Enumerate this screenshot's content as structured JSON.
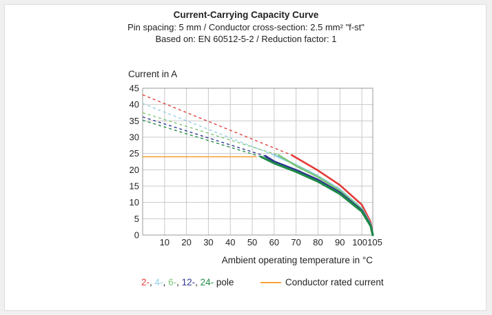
{
  "titles": {
    "line1": "Current-Carrying Capacity Curve",
    "line2": "Pin spacing: 5 mm / Conductor cross-section: 2.5 mm² \"f-st\"",
    "line3": "Based on: EN 60512-5-2 / Reduction factor: 1"
  },
  "legend": {
    "poles": [
      {
        "text": "2-",
        "color": "#e53935"
      },
      {
        "text": ", ",
        "color": "#222222"
      },
      {
        "text": "4-",
        "color": "#8fd0e8"
      },
      {
        "text": ", ",
        "color": "#222222"
      },
      {
        "text": "6-",
        "color": "#7cc576"
      },
      {
        "text": ", ",
        "color": "#222222"
      },
      {
        "text": "12-",
        "color": "#2e3592"
      },
      {
        "text": ", ",
        "color": "#222222"
      },
      {
        "text": "24-",
        "color": "#1e8a46"
      },
      {
        "text": " pole",
        "color": "#222222"
      }
    ],
    "rated_label": "Conductor rated current",
    "rated_color": "#f7a23b"
  },
  "chart_data": {
    "type": "line",
    "ylabel": "Current in A",
    "xlabel": "Ambient operating temperature in °C",
    "xlim": [
      0,
      105
    ],
    "ylim": [
      0,
      45
    ],
    "xticks": [
      10,
      20,
      30,
      40,
      50,
      60,
      70,
      80,
      90,
      100,
      105
    ],
    "yticks": [
      0,
      5,
      10,
      15,
      20,
      25,
      30,
      35,
      40,
      45
    ],
    "grid": true,
    "rated_current": {
      "name": "Conductor rated current",
      "value": 24,
      "x": [
        0,
        52
      ],
      "color": "#f7a23b"
    },
    "series": [
      {
        "pole": "2-",
        "color": "#e53935",
        "width": 2.6,
        "dashed": {
          "x": [
            0,
            68
          ],
          "y": [
            43,
            24.5
          ]
        },
        "x": [
          68,
          80,
          90,
          100,
          104,
          105
        ],
        "y": [
          24.5,
          19.8,
          15.3,
          9.3,
          4.0,
          0
        ]
      },
      {
        "pole": "4-",
        "color": "#8fd0e8",
        "width": 2.6,
        "dashed": {
          "x": [
            0,
            60
          ],
          "y": [
            40.3,
            24.5
          ]
        },
        "x": [
          60,
          70,
          80,
          90,
          100,
          104,
          105
        ],
        "y": [
          24.5,
          21.5,
          18.1,
          14.0,
          8.2,
          3.4,
          0
        ]
      },
      {
        "pole": "6-",
        "color": "#7cc576",
        "width": 2.6,
        "dashed": {
          "x": [
            0,
            62
          ],
          "y": [
            37.5,
            24.5
          ]
        },
        "x": [
          62,
          70,
          80,
          90,
          100,
          104,
          105
        ],
        "y": [
          24.5,
          21.2,
          17.8,
          13.6,
          7.9,
          3.2,
          0
        ]
      },
      {
        "pole": "12-",
        "color": "#2e3592",
        "width": 3.2,
        "dashed": {
          "x": [
            0,
            56
          ],
          "y": [
            36.2,
            24.2
          ]
        },
        "x": [
          56,
          60,
          70,
          80,
          90,
          100,
          104,
          105
        ],
        "y": [
          24.2,
          22.5,
          19.9,
          16.9,
          13.0,
          7.5,
          3.0,
          0
        ]
      },
      {
        "pole": "24-",
        "color": "#1e8a46",
        "width": 3.2,
        "dashed": {
          "x": [
            0,
            54
          ],
          "y": [
            35.2,
            24.0
          ]
        },
        "x": [
          54,
          60,
          70,
          80,
          90,
          100,
          104,
          105
        ],
        "y": [
          24.0,
          22.0,
          19.4,
          16.4,
          12.6,
          7.2,
          2.8,
          0
        ]
      }
    ]
  }
}
